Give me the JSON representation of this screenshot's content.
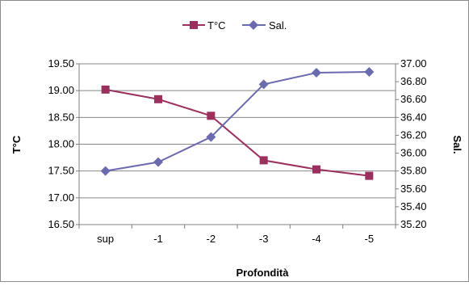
{
  "chart_data": {
    "type": "line",
    "categories": [
      "sup",
      "-1",
      "-2",
      "-3",
      "-4",
      "-5"
    ],
    "xlabel": "Profondità",
    "series": [
      {
        "name": "T°C",
        "axis": "left",
        "color": "#9B2F5E",
        "marker": "square",
        "values": [
          19.02,
          18.84,
          18.53,
          17.7,
          17.53,
          17.41
        ]
      },
      {
        "name": "Sal.",
        "axis": "right",
        "color": "#6A6AAE",
        "marker": "diamond",
        "values": [
          35.8,
          35.9,
          36.18,
          36.77,
          36.9,
          36.91
        ]
      }
    ],
    "y_left": {
      "label": "T°C",
      "ylim": [
        16.5,
        19.5
      ],
      "ticks": [
        "16.50",
        "17.00",
        "17.50",
        "18.00",
        "18.50",
        "19.00",
        "19.50"
      ]
    },
    "y_right": {
      "label": "Sal.",
      "ylim": [
        35.2,
        37.0
      ],
      "ticks": [
        "35.20",
        "35.40",
        "35.60",
        "35.80",
        "36.00",
        "36.20",
        "36.40",
        "36.60",
        "36.80",
        "37.00"
      ]
    },
    "grid": "horizontal",
    "legend": "top-center",
    "colors": {
      "grid": "#888888",
      "axis": "#808080",
      "border": "#8c8c8c"
    }
  }
}
